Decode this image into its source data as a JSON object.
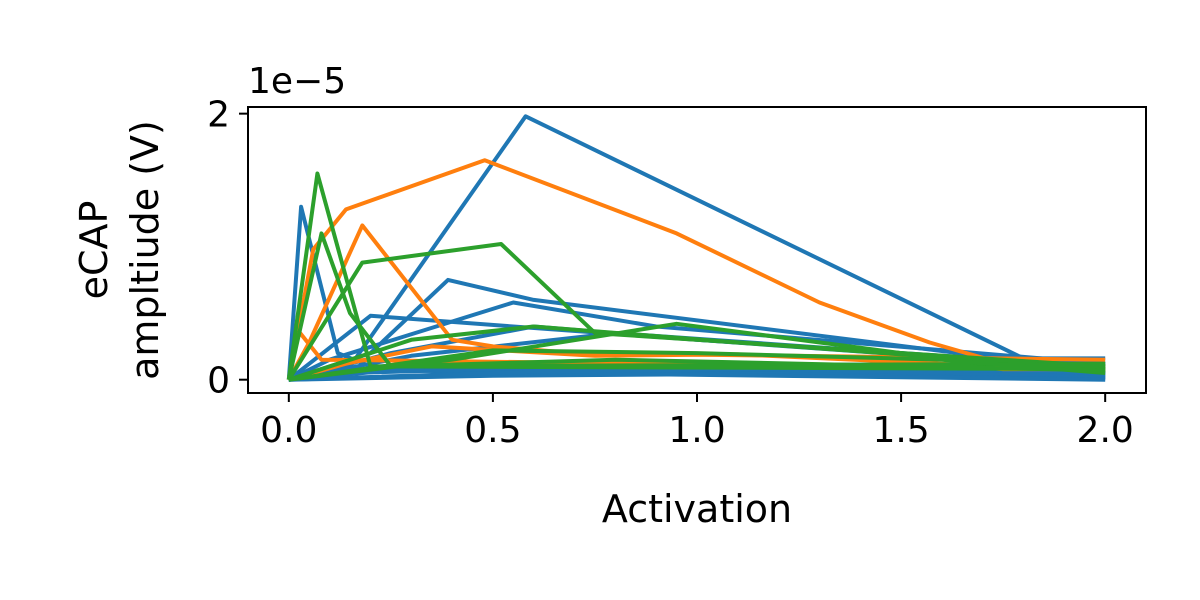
{
  "chart_data": {
    "type": "line",
    "xlabel": "Activation",
    "ylabel_line1": "eCAP",
    "ylabel_line2": "ampltiude (V)",
    "y_offset_label": "1e−5",
    "xlim": [
      -0.1,
      2.1
    ],
    "ylim": [
      -0.1,
      2.05
    ],
    "x_ticks": [
      0.0,
      0.5,
      1.0,
      1.5,
      2.0
    ],
    "x_tick_labels": [
      "0.0",
      "0.5",
      "1.0",
      "1.5",
      "2.0"
    ],
    "y_ticks": [
      0,
      2
    ],
    "y_tick_labels": [
      "0",
      "2"
    ],
    "grid": false,
    "colors": {
      "blue": "#1f77b4",
      "orange": "#ff7f0e",
      "green": "#2ca02c"
    },
    "series": [
      {
        "color": "blue",
        "x": [
          0.0,
          0.03,
          0.12,
          0.2,
          2.0
        ],
        "y": [
          0.0,
          1.3,
          0.2,
          0.1,
          0.12
        ]
      },
      {
        "color": "blue",
        "x": [
          0.0,
          0.15,
          0.58,
          1.8,
          2.0
        ],
        "y": [
          0.0,
          0.1,
          1.98,
          0.16,
          0.16
        ]
      },
      {
        "color": "blue",
        "x": [
          0.0,
          0.2,
          0.39,
          0.6,
          1.9,
          2.0
        ],
        "y": [
          0.0,
          0.2,
          0.75,
          0.6,
          0.1,
          0.1
        ]
      },
      {
        "color": "blue",
        "x": [
          0.0,
          0.2,
          0.55,
          1.0,
          2.0
        ],
        "y": [
          0.0,
          0.48,
          0.4,
          0.3,
          0.1
        ]
      },
      {
        "color": "blue",
        "x": [
          0.0,
          0.1,
          0.55,
          0.9,
          2.0
        ],
        "y": [
          0.0,
          0.15,
          0.58,
          0.4,
          0.12
        ]
      },
      {
        "color": "blue",
        "x": [
          0.0,
          0.25,
          0.6,
          1.0,
          2.0
        ],
        "y": [
          0.0,
          0.2,
          0.4,
          0.3,
          0.08
        ]
      },
      {
        "color": "blue",
        "x": [
          0.0,
          0.3,
          0.8,
          1.5,
          2.0
        ],
        "y": [
          0.0,
          0.18,
          0.35,
          0.2,
          0.05
        ]
      },
      {
        "color": "blue",
        "x": [
          0.0,
          0.2,
          1.0,
          2.0
        ],
        "y": [
          0.0,
          0.08,
          0.05,
          0.02
        ]
      },
      {
        "color": "blue",
        "x": [
          0.0,
          0.3,
          1.2,
          2.0
        ],
        "y": [
          0.0,
          0.1,
          0.07,
          0.04
        ]
      },
      {
        "color": "blue",
        "x": [
          0.0,
          0.15,
          0.7,
          2.0
        ],
        "y": [
          0.0,
          0.05,
          0.1,
          0.06
        ]
      },
      {
        "color": "blue",
        "x": [
          0.0,
          0.5,
          1.5,
          2.0
        ],
        "y": [
          0.0,
          0.03,
          0.05,
          0.01
        ]
      },
      {
        "color": "blue",
        "x": [
          0.0,
          0.4,
          1.1,
          2.0
        ],
        "y": [
          0.0,
          0.12,
          0.08,
          0.03
        ]
      },
      {
        "color": "blue",
        "x": [
          0.0,
          0.25,
          0.9,
          2.0
        ],
        "y": [
          0.0,
          0.07,
          0.04,
          0.0
        ]
      },
      {
        "color": "blue",
        "x": [
          0.0,
          0.6,
          1.4,
          2.0
        ],
        "y": [
          0.0,
          0.06,
          0.09,
          0.05
        ]
      },
      {
        "color": "orange",
        "x": [
          0.0,
          0.06,
          0.14,
          0.48,
          0.95,
          1.3,
          1.57,
          1.75,
          2.0
        ],
        "y": [
          0.0,
          0.98,
          1.28,
          1.65,
          1.1,
          0.58,
          0.28,
          0.12,
          0.1
        ]
      },
      {
        "color": "orange",
        "x": [
          0.0,
          0.05,
          0.18,
          0.4,
          0.5,
          0.7,
          2.0
        ],
        "y": [
          0.0,
          0.28,
          1.16,
          0.3,
          0.25,
          0.2,
          0.15
        ]
      },
      {
        "color": "orange",
        "x": [
          0.0,
          0.14,
          0.35,
          0.75,
          1.1,
          1.6,
          1.75,
          2.0
        ],
        "y": [
          0.0,
          0.12,
          0.25,
          0.18,
          0.19,
          0.12,
          0.08,
          0.08
        ]
      },
      {
        "color": "orange",
        "x": [
          0.0,
          0.02,
          0.08,
          2.0
        ],
        "y": [
          0.0,
          0.38,
          0.15,
          0.08
        ]
      },
      {
        "color": "green",
        "x": [
          0.0,
          0.07,
          0.2,
          2.0
        ],
        "y": [
          0.0,
          1.55,
          0.1,
          0.12
        ]
      },
      {
        "color": "green",
        "x": [
          0.0,
          0.08,
          0.15,
          0.25,
          2.0
        ],
        "y": [
          0.0,
          1.1,
          0.5,
          0.1,
          0.08
        ]
      },
      {
        "color": "green",
        "x": [
          0.0,
          0.18,
          0.52,
          0.75,
          2.0
        ],
        "y": [
          0.0,
          0.88,
          1.02,
          0.35,
          0.1
        ]
      },
      {
        "color": "green",
        "x": [
          0.0,
          0.3,
          0.6,
          1.1,
          2.0
        ],
        "y": [
          0.0,
          0.3,
          0.4,
          0.28,
          0.08
        ]
      },
      {
        "color": "green",
        "x": [
          0.0,
          0.4,
          0.95,
          1.7,
          2.0
        ],
        "y": [
          0.0,
          0.15,
          0.42,
          0.12,
          0.1
        ]
      },
      {
        "color": "green",
        "x": [
          0.0,
          0.5,
          1.0,
          1.6,
          2.0
        ],
        "y": [
          0.0,
          0.22,
          0.2,
          0.15,
          0.05
        ]
      },
      {
        "color": "green",
        "x": [
          0.0,
          0.25,
          0.8,
          2.0
        ],
        "y": [
          0.0,
          0.1,
          0.15,
          0.07
        ]
      }
    ]
  }
}
